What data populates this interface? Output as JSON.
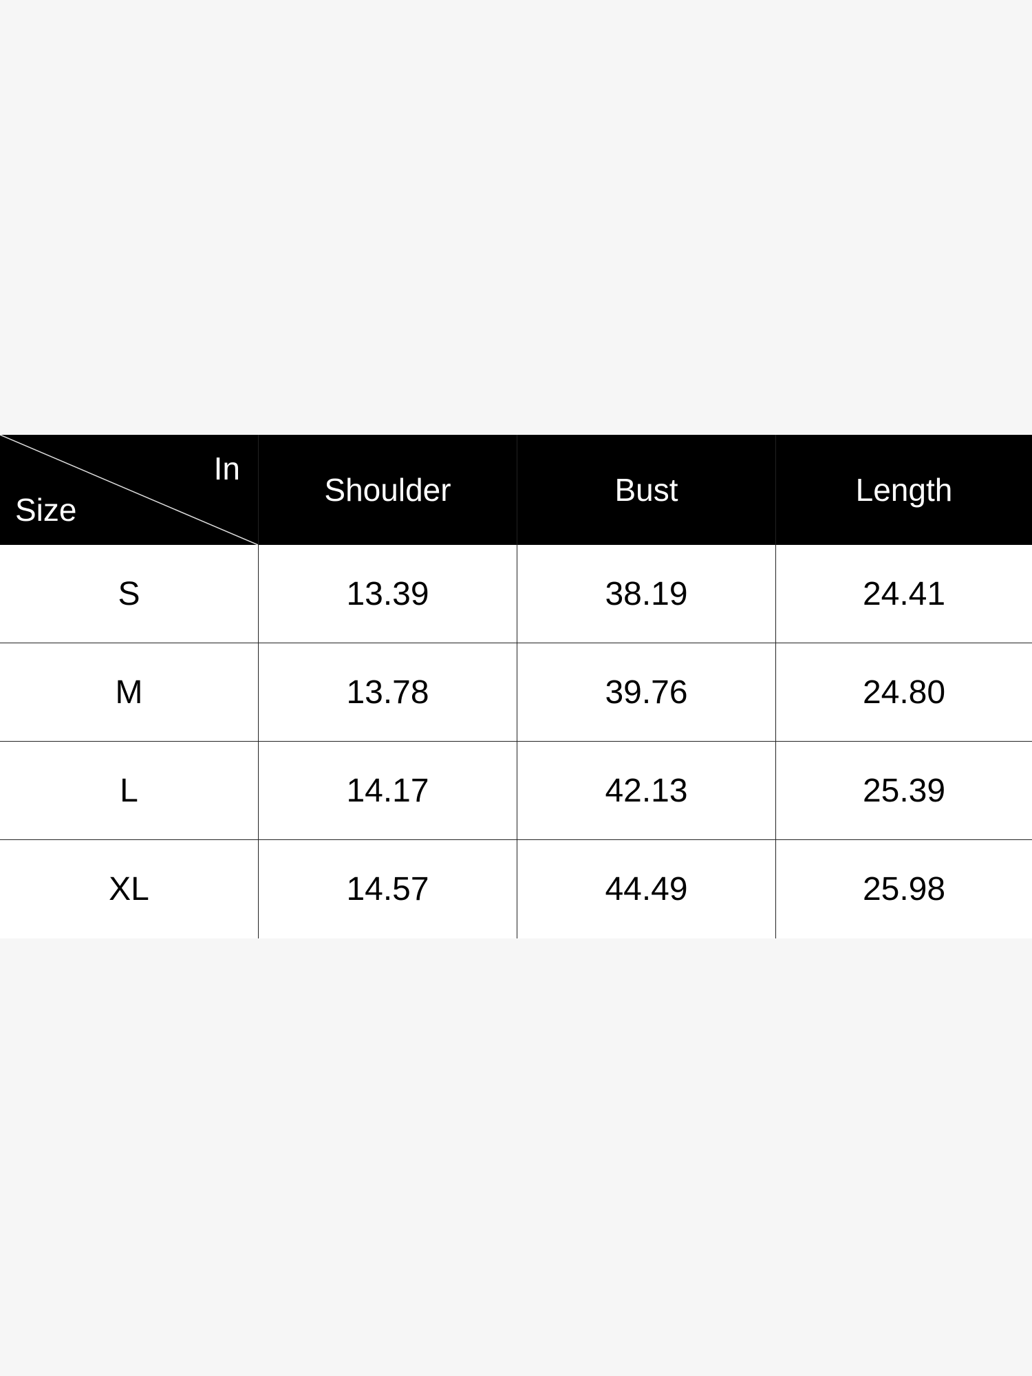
{
  "table": {
    "corner": {
      "unit": "In",
      "row_label": "Size"
    },
    "headers": [
      "Shoulder",
      "Bust",
      "Length"
    ],
    "rows": [
      {
        "size": "S",
        "values": [
          "13.39",
          "38.19",
          "24.41"
        ]
      },
      {
        "size": "M",
        "values": [
          "13.78",
          "39.76",
          "24.80"
        ]
      },
      {
        "size": "L",
        "values": [
          "14.17",
          "42.13",
          "25.39"
        ]
      },
      {
        "size": "XL",
        "values": [
          "14.57",
          "44.49",
          "25.98"
        ]
      }
    ]
  },
  "colors": {
    "header_bg": "#000000",
    "header_text": "#ffffff",
    "page_bg": "#f6f6f6"
  }
}
